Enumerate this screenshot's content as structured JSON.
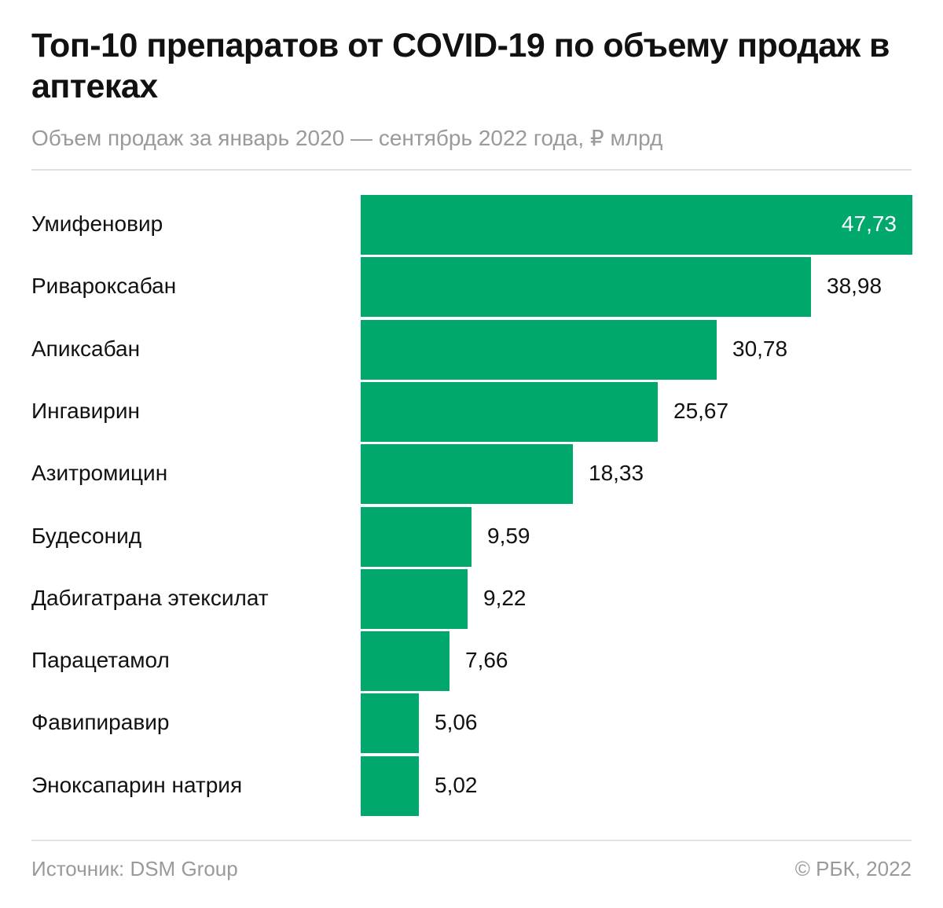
{
  "header": {
    "title": "Топ-10 препаратов от COVID-19 по объему продаж в аптеках",
    "subtitle": "Объем продаж за январь 2020 — сентябрь 2022 года, ₽ млрд"
  },
  "footer": {
    "source": "Источник: DSM Group",
    "copyright": "© РБК, 2022"
  },
  "colors": {
    "bar": "#00a86b",
    "text": "#111111",
    "muted": "#9a9a9a"
  },
  "chart_data": {
    "type": "bar",
    "orientation": "horizontal",
    "title": "Топ-10 препаратов от COVID-19 по объему продаж в аптеках",
    "subtitle": "Объем продаж за январь 2020 — сентябрь 2022 года, ₽ млрд",
    "xlabel": "",
    "ylabel": "",
    "xlim": [
      0,
      47.73
    ],
    "grid": false,
    "categories": [
      "Умифеновир",
      "Ривароксабан",
      "Апиксабан",
      "Ингавирин",
      "Азитромицин",
      "Будесонид",
      "Дабигатрана этексилат",
      "Парацетамол",
      "Фавипиравир",
      "Эноксапарин натрия"
    ],
    "values": [
      47.73,
      38.98,
      30.78,
      25.67,
      18.33,
      9.59,
      9.22,
      7.66,
      5.06,
      5.02
    ],
    "value_labels": [
      "47,73",
      "38,98",
      "30,78",
      "25,67",
      "18,33",
      "9,59",
      "9,22",
      "7,66",
      "5,06",
      "5,02"
    ]
  }
}
